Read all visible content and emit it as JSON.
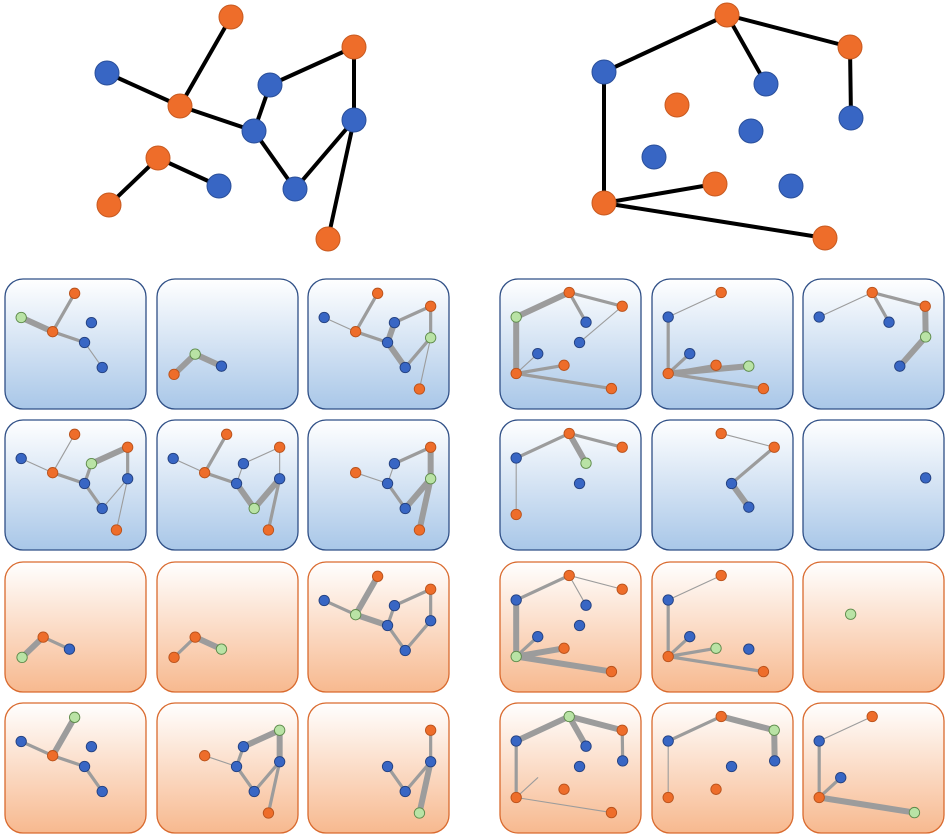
{
  "colors": {
    "blue_node": "#3866c4",
    "orange_node": "#ee6d2a",
    "highlight_node": "#b9e3a5",
    "edge_main": "#000000",
    "edge_sub": "#9c9c9c",
    "blue_panel_top": "#ffffff",
    "blue_panel_bottom": "#a9c7e8",
    "orange_panel_top": "#ffffff",
    "orange_panel_bottom": "#f7b98f"
  },
  "graph_left": {
    "nodes": [
      {
        "id": 1,
        "color": "orange"
      },
      {
        "id": 2,
        "color": "blue"
      },
      {
        "id": 3,
        "color": "orange"
      },
      {
        "id": 4,
        "color": "blue"
      },
      {
        "id": 5,
        "color": "orange"
      },
      {
        "id": 6,
        "color": "blue"
      },
      {
        "id": 7,
        "color": "blue"
      },
      {
        "id": 8,
        "color": "blue"
      },
      {
        "id": 9,
        "color": "orange"
      },
      {
        "id": 10,
        "color": "orange"
      },
      {
        "id": 11,
        "color": "blue"
      },
      {
        "id": 12,
        "color": "orange"
      }
    ],
    "edges": [
      [
        1,
        3
      ],
      [
        2,
        3
      ],
      [
        3,
        6
      ],
      [
        4,
        6
      ],
      [
        4,
        5
      ],
      [
        5,
        7
      ],
      [
        6,
        8
      ],
      [
        7,
        8
      ],
      [
        7,
        12
      ],
      [
        10,
        9
      ],
      [
        9,
        11
      ]
    ]
  },
  "graph_right": {
    "nodes": [
      {
        "id": 1,
        "color": "orange"
      },
      {
        "id": 2,
        "color": "blue"
      },
      {
        "id": 3,
        "color": "orange"
      },
      {
        "id": 4,
        "color": "blue"
      },
      {
        "id": 5,
        "color": "orange"
      },
      {
        "id": 6,
        "color": "blue"
      },
      {
        "id": 7,
        "color": "blue"
      },
      {
        "id": 8,
        "color": "blue"
      },
      {
        "id": 9,
        "color": "orange"
      },
      {
        "id": 10,
        "color": "blue"
      },
      {
        "id": 11,
        "color": "orange"
      },
      {
        "id": 12,
        "color": "orange"
      }
    ],
    "edges": [
      [
        1,
        2
      ],
      [
        1,
        4
      ],
      [
        1,
        3
      ],
      [
        3,
        6
      ],
      [
        2,
        11
      ],
      [
        11,
        9
      ],
      [
        11,
        12
      ]
    ]
  },
  "panels": {
    "left_blue": [
      {
        "row": 1,
        "col": 1,
        "theme": "blue",
        "highlight": 2
      },
      {
        "row": 1,
        "col": 2,
        "theme": "blue",
        "highlight": 9
      },
      {
        "row": 1,
        "col": 3,
        "theme": "blue",
        "highlight": 7
      },
      {
        "row": 2,
        "col": 1,
        "theme": "blue",
        "highlight": 4
      },
      {
        "row": 2,
        "col": 2,
        "theme": "blue",
        "highlight": 8
      },
      {
        "row": 2,
        "col": 3,
        "theme": "blue",
        "highlight": 7
      }
    ],
    "left_orange": [
      {
        "row": 3,
        "col": 1,
        "theme": "orange",
        "highlight": 10
      },
      {
        "row": 3,
        "col": 2,
        "theme": "orange",
        "highlight": 11
      },
      {
        "row": 3,
        "col": 3,
        "theme": "orange",
        "highlight": 3
      },
      {
        "row": 4,
        "col": 1,
        "theme": "orange",
        "highlight": 1
      },
      {
        "row": 4,
        "col": 2,
        "theme": "orange",
        "highlight": 5
      },
      {
        "row": 4,
        "col": 3,
        "theme": "orange",
        "highlight": 12
      }
    ],
    "right_blue": [
      {
        "row": 1,
        "col": 1,
        "theme": "blue",
        "highlight": 2
      },
      {
        "row": 1,
        "col": 2,
        "theme": "blue",
        "highlight": 10
      },
      {
        "row": 1,
        "col": 3,
        "theme": "blue",
        "highlight": 6
      },
      {
        "row": 2,
        "col": 1,
        "theme": "blue",
        "highlight": 4
      },
      {
        "row": 2,
        "col": 2,
        "theme": "blue",
        "highlight": 8
      },
      {
        "row": 2,
        "col": 3,
        "theme": "blue",
        "highlight": 7
      }
    ],
    "right_orange": [
      {
        "row": 3,
        "col": 1,
        "theme": "orange",
        "highlight": 11
      },
      {
        "row": 3,
        "col": 2,
        "theme": "orange",
        "highlight": 9
      },
      {
        "row": 3,
        "col": 3,
        "theme": "orange",
        "highlight": 5
      },
      {
        "row": 4,
        "col": 1,
        "theme": "orange",
        "highlight": 1
      },
      {
        "row": 4,
        "col": 2,
        "theme": "orange",
        "highlight": 3
      },
      {
        "row": 4,
        "col": 3,
        "theme": "orange",
        "highlight": 12
      }
    ]
  }
}
